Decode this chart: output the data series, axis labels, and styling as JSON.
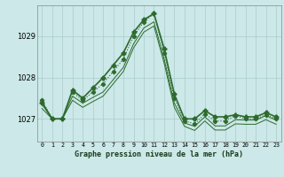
{
  "title": "Graphe pression niveau de la mer (hPa)",
  "background_color": "#cce8e8",
  "grid_color": "#aacccc",
  "line_color": "#2d6a2d",
  "xlim": [
    -0.5,
    23.5
  ],
  "ylim": [
    1026.45,
    1029.75
  ],
  "yticks": [
    1027,
    1028,
    1029
  ],
  "xticks": [
    0,
    1,
    2,
    3,
    4,
    5,
    6,
    7,
    8,
    9,
    10,
    11,
    12,
    13,
    14,
    15,
    16,
    17,
    18,
    19,
    20,
    21,
    22,
    23
  ],
  "series": [
    {
      "x": [
        0,
        1,
        2,
        3,
        4,
        5,
        6,
        7,
        8,
        9,
        10,
        11,
        12,
        13,
        14,
        15,
        16,
        17,
        18,
        19,
        20,
        21,
        22,
        23
      ],
      "y": [
        1027.4,
        1027.0,
        1027.0,
        1027.7,
        1027.5,
        1027.75,
        1028.0,
        1028.3,
        1028.6,
        1029.1,
        1029.4,
        1029.55,
        1028.7,
        1027.6,
        1027.0,
        1027.0,
        1027.2,
        1027.05,
        1027.05,
        1027.1,
        1027.05,
        1027.05,
        1027.15,
        1027.05
      ],
      "marker": "P",
      "markersize": 3.5,
      "linestyle": "-",
      "linewidth": 1.2
    },
    {
      "x": [
        0,
        1,
        2,
        3,
        4,
        5,
        6,
        7,
        8,
        9,
        10,
        11,
        12,
        13,
        14,
        15,
        16,
        17,
        18,
        19,
        20,
        21,
        22,
        23
      ],
      "y": [
        1027.45,
        1027.0,
        1027.0,
        1027.65,
        1027.45,
        1027.65,
        1027.85,
        1028.15,
        1028.45,
        1029.0,
        1029.35,
        1029.55,
        1028.6,
        1027.5,
        1026.95,
        1026.88,
        1027.12,
        1026.95,
        1026.95,
        1027.08,
        1027.0,
        1027.0,
        1027.1,
        1027.0
      ],
      "marker": "P",
      "markersize": 3.0,
      "linestyle": ":",
      "linewidth": 0.8
    },
    {
      "x": [
        0,
        1,
        2,
        3,
        4,
        5,
        6,
        7,
        8,
        9,
        10,
        11,
        12,
        13,
        14,
        15,
        16,
        17,
        18,
        19,
        20,
        21,
        22,
        23
      ],
      "y": [
        1027.35,
        1027.0,
        1027.0,
        1027.55,
        1027.38,
        1027.52,
        1027.65,
        1027.95,
        1028.25,
        1028.82,
        1029.2,
        1029.35,
        1028.45,
        1027.38,
        1026.9,
        1026.82,
        1027.05,
        1026.83,
        1026.83,
        1026.98,
        1026.97,
        1026.97,
        1027.08,
        1026.97
      ],
      "marker": null,
      "markersize": 0,
      "linestyle": "-",
      "linewidth": 0.7
    },
    {
      "x": [
        0,
        1,
        2,
        3,
        4,
        5,
        6,
        7,
        8,
        9,
        10,
        11,
        12,
        13,
        14,
        15,
        16,
        17,
        18,
        19,
        20,
        21,
        22,
        23
      ],
      "y": [
        1027.25,
        1027.0,
        1027.0,
        1027.45,
        1027.28,
        1027.42,
        1027.55,
        1027.85,
        1028.15,
        1028.72,
        1029.1,
        1029.25,
        1028.35,
        1027.28,
        1026.82,
        1026.72,
        1026.95,
        1026.73,
        1026.73,
        1026.88,
        1026.87,
        1026.87,
        1026.98,
        1026.87
      ],
      "marker": null,
      "markersize": 0,
      "linestyle": "-",
      "linewidth": 0.7
    }
  ]
}
